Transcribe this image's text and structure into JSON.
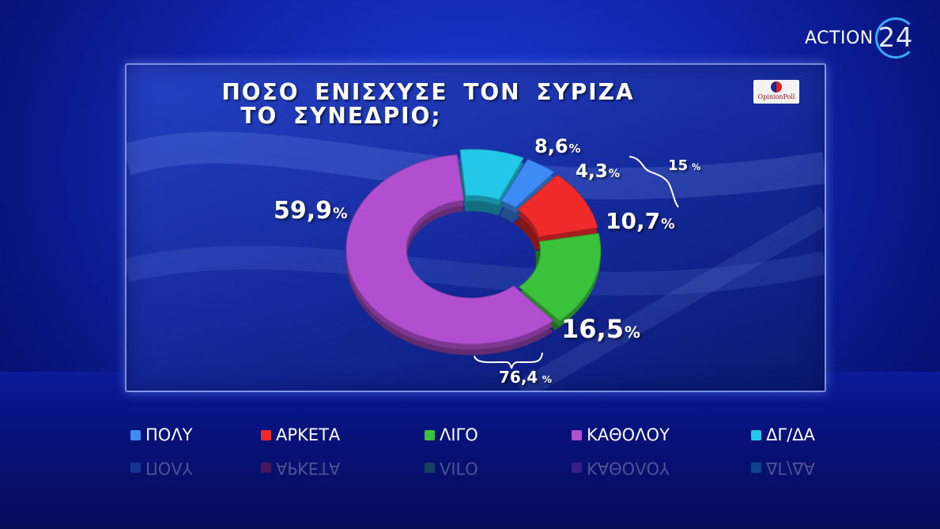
{
  "brand": {
    "text": "ACTION",
    "number": "24"
  },
  "pollster": {
    "name": "OpinionPoll"
  },
  "title_lines": [
    "ΠΟΣΟ ΕΝΙΣΧΥΣΕ ΤΟΝ ΣΥΡΙΖΑ",
    "ΤΟ ΣΥΝΕΔΡΙΟ;"
  ],
  "chart_data": {
    "type": "pie",
    "title": "ΠΟΣΟ ΕΝΙΣΧΥΣΕ ΤΟΝ ΣΥΡΙΖΑ ΤΟ ΣΥΝΕΔΡΙΟ;",
    "categories": [
      "ΠΟΛΥ",
      "ΑΡΚΕΤΑ",
      "ΛΙΓΟ",
      "ΚΑΘΟΛΟΥ",
      "ΔΓ/ΔΑ"
    ],
    "values": [
      4.3,
      10.7,
      16.5,
      59.9,
      8.6
    ],
    "labels": [
      "4,3",
      "10,7",
      "16,5",
      "59,9",
      "8,6"
    ],
    "unit": "%",
    "colors": [
      "#3d8cf5",
      "#f02a2a",
      "#39c23a",
      "#b24fd0",
      "#22c8e8"
    ],
    "groups": [
      {
        "label": "15",
        "unit": "%",
        "members": [
          "ΠΟΛΥ",
          "ΑΡΚΕΤΑ"
        ]
      },
      {
        "label": "76,4",
        "unit": "%",
        "members": [
          "ΛΙΓΟ",
          "ΚΑΘΟΛΟΥ"
        ]
      }
    ],
    "legend_position": "bottom"
  }
}
